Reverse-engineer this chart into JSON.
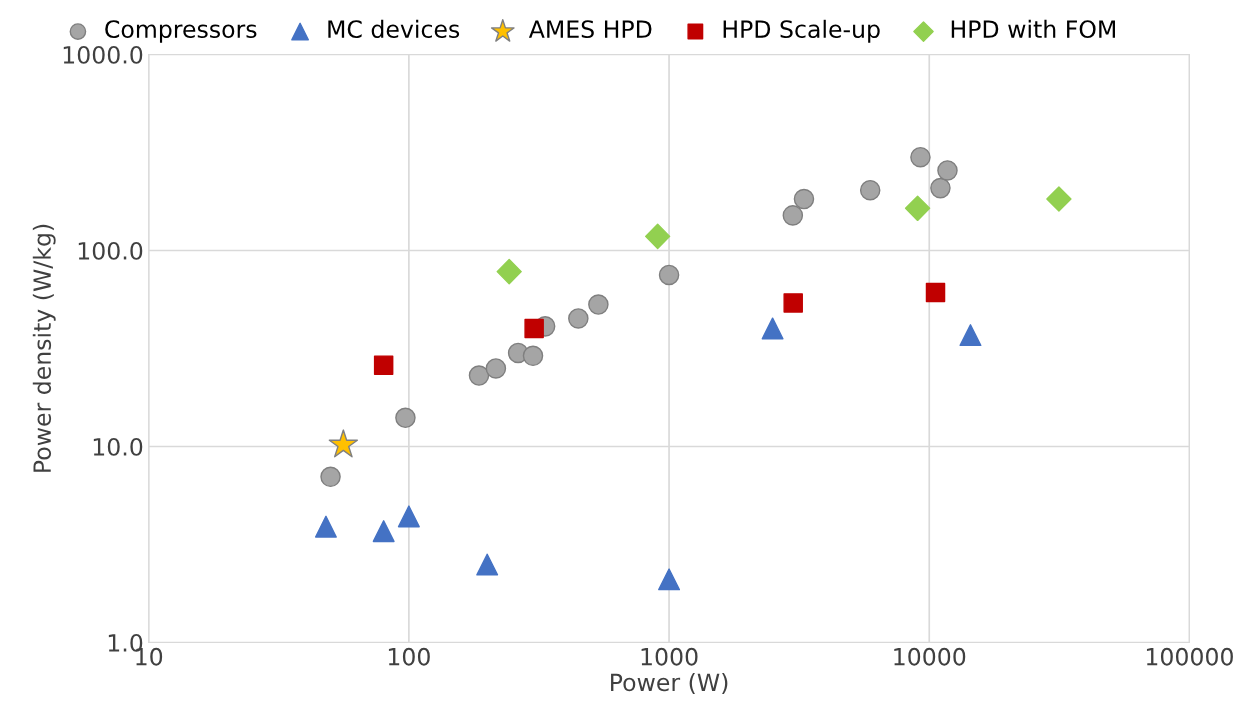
{
  "chart_data": {
    "type": "scatter",
    "xlabel": "Power (W)",
    "ylabel": "Power density (W/kg)",
    "log": "xy",
    "grid": true,
    "legend": "top",
    "xlim": [
      10,
      100000
    ],
    "xticks": [
      10,
      100,
      1000,
      10000,
      100000
    ],
    "ylim": [
      1,
      1000
    ],
    "yticks": [
      {
        "value": 1,
        "label": "1.0"
      },
      {
        "value": 10,
        "label": "10.0"
      },
      {
        "value": 100,
        "label": "100.0"
      },
      {
        "value": 1000,
        "label": "1000.0"
      }
    ],
    "series": [
      {
        "name": "Compressors",
        "color": "#a5a5a5",
        "marker": "circle",
        "x": [
          50,
          97,
          186,
          216,
          263,
          300,
          334,
          448,
          535,
          1000,
          2990,
          3300,
          5930,
          9250,
          11040,
          11750
        ],
        "values": [
          7.0,
          14,
          23,
          25,
          30,
          29,
          41,
          45,
          53,
          75,
          151,
          183,
          203,
          299,
          208,
          256
        ]
      },
      {
        "name": "MC devices",
        "color": "#4472c4",
        "marker": "triangle",
        "x": [
          48,
          80,
          100,
          200,
          1000,
          2500,
          14400
        ],
        "values": [
          3.9,
          3.7,
          4.4,
          2.5,
          2.1,
          40,
          37
        ]
      },
      {
        "name": "AMES HPD",
        "color": "#ffc000",
        "marker": "star",
        "x": [
          56
        ],
        "values": [
          10.2
        ]
      },
      {
        "name": "HPD Scale-up",
        "color": "#c00000",
        "marker": "square",
        "x": [
          80,
          303,
          3000,
          10570
        ],
        "values": [
          26,
          40,
          54,
          61
        ]
      },
      {
        "name": "HPD with FOM",
        "color": "#92d050",
        "marker": "diamond",
        "x": [
          243,
          904,
          9020,
          31500
        ],
        "values": [
          78,
          118,
          164,
          183
        ]
      }
    ]
  }
}
